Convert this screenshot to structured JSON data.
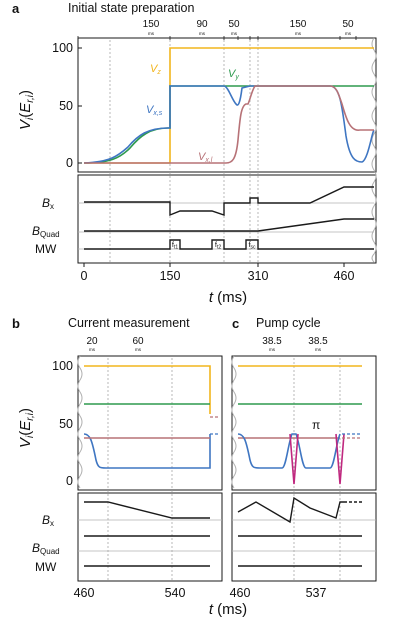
{
  "colors": {
    "Vz": "#f2b51d",
    "Vy": "#2e9a4f",
    "Vxs": "#3f76c2",
    "Vxl": "#b77277",
    "pulse": "#c0287f",
    "axis": "#1a1a1a",
    "guide": "#9a9a9a",
    "trace": "#1a1a1a"
  },
  "panels": {
    "a": {
      "letter": "a",
      "title": "Initial state preparation"
    },
    "b": {
      "letter": "b",
      "title": "Current measurement"
    },
    "c": {
      "letter": "c",
      "title": "Pump cycle"
    }
  },
  "labels": {
    "y_axis_main": "V",
    "y_axis_sub_i": "i",
    "y_axis_paren_open": "(",
    "y_axis_E": "E",
    "y_axis_sub_ri": "r,i",
    "y_axis_paren_close": ")",
    "x_axis_main": "t",
    "x_axis_unit": "(ms)",
    "Bx_main": "B",
    "Bx_sub": "x",
    "BQuad_main": "B",
    "BQuad_sub": "Quad",
    "MW": "MW",
    "Vz_main": "V",
    "Vz_sub": "z",
    "Vy_main": "V",
    "Vy_sub": "y",
    "Vxs_main": "V",
    "Vxs_sub": "x,s",
    "Vxl_main": "V",
    "Vxl_sub": "x,l",
    "pi": "π",
    "f1": "f",
    "f1_sub": "t1",
    "f2": "f",
    "f2_sub": "t2",
    "f3": "f",
    "f3_sub": "sc",
    "ms": "ms"
  },
  "chart_data": [
    {
      "id": "a",
      "type": "line",
      "title": "Initial state preparation",
      "xlabel": "t (ms)",
      "ylabel": "V_i (E_r,i)",
      "xlim": [
        0,
        480
      ],
      "ylim": [
        -5,
        110
      ],
      "x_ticks": [
        0,
        150,
        310,
        460
      ],
      "x_tick_labels": [
        "0",
        "150",
        "310",
        "460"
      ],
      "y_ticks": [
        0,
        50,
        100
      ],
      "y_tick_labels": [
        "0",
        "50",
        "100"
      ],
      "interval_labels": [
        {
          "value": "150",
          "unit": "ms",
          "x": 75
        },
        {
          "value": "90",
          "unit": "ms",
          "x": 195
        },
        {
          "value": "50",
          "unit": "ms",
          "x": 265
        },
        {
          "value": "150",
          "unit": "ms",
          "x": 385
        },
        {
          "value": "50",
          "unit": "ms",
          "x": 455
        }
      ],
      "guides_x": [
        150,
        240,
        290,
        310
      ],
      "series": [
        {
          "name": "V_z",
          "color_key": "Vz",
          "x": [
            0,
            150,
            150,
            480
          ],
          "y": [
            0,
            0,
            100,
            100
          ]
        },
        {
          "name": "V_y",
          "color_key": "Vy",
          "x": [
            0,
            30,
            60,
            90,
            120,
            150,
            150,
            480
          ],
          "y": [
            0,
            2,
            15,
            28,
            30,
            30,
            70,
            70
          ]
        },
        {
          "name": "V_x,s",
          "color_key": "Vxs",
          "x": [
            0,
            30,
            60,
            90,
            120,
            150,
            150,
            240,
            245,
            250,
            255,
            260,
            290,
            300,
            400,
            420,
            430,
            440,
            450,
            460,
            470,
            480
          ],
          "y": [
            0,
            2,
            16,
            30,
            31,
            31,
            70,
            70,
            50,
            35,
            35,
            70,
            70,
            70,
            70,
            60,
            30,
            5,
            0,
            0,
            30,
            38
          ]
        },
        {
          "name": "V_x,l",
          "color_key": "Vxl",
          "x": [
            0,
            240,
            255,
            262,
            268,
            275,
            400,
            420,
            430,
            440,
            460,
            480
          ],
          "y": [
            0,
            0,
            5,
            30,
            60,
            70,
            70,
            65,
            45,
            38,
            38,
            38
          ]
        }
      ],
      "controls": [
        {
          "name": "B_x",
          "x": [
            0,
            150,
            150,
            160,
            200,
            220,
            240,
            240,
            250,
            250,
            270,
            270,
            300,
            420,
            460
          ],
          "y": [
            0.7,
            0.7,
            0.28,
            0.45,
            0.45,
            0.45,
            0.28,
            0.7,
            0.7,
            0.85,
            0.85,
            0.7,
            0.45,
            0.85,
            0.85
          ]
        },
        {
          "name": "B_Quad",
          "x": [
            0,
            240,
            240,
            290,
            460
          ],
          "y": [
            0.2,
            0.2,
            0.2,
            0.2,
            0.55
          ]
        },
        {
          "name": "MW",
          "pulses": [
            {
              "label": "f_t1",
              "x0": 150,
              "x1": 165
            },
            {
              "label": "f_t2",
              "x0": 225,
              "x1": 240
            },
            {
              "label": "f_sc",
              "x0": 270,
              "x1": 285
            }
          ]
        }
      ]
    },
    {
      "id": "b",
      "type": "line",
      "title": "Current measurement",
      "xlabel": "t (ms)",
      "xlim": [
        460,
        560
      ],
      "ylim": [
        -5,
        110
      ],
      "x_ticks": [
        460,
        540
      ],
      "x_tick_labels": [
        "460",
        "540"
      ],
      "y_ticks": [
        0,
        50,
        100
      ],
      "y_tick_labels": [
        "0",
        "50",
        "100"
      ],
      "interval_labels": [
        {
          "value": "20",
          "unit": "ms"
        },
        {
          "value": "60",
          "unit": "ms"
        }
      ],
      "series": [
        {
          "name": "V_z",
          "color_key": "Vz",
          "x": [
            460,
            560
          ],
          "y": [
            100,
            100
          ]
        },
        {
          "name": "V_y",
          "color_key": "Vy",
          "x": [
            460,
            560
          ],
          "y": [
            70,
            70
          ]
        },
        {
          "name": "V_x,s",
          "color_key": "Vxs",
          "x": [
            460,
            470,
            480,
            490,
            540,
            560
          ],
          "y": [
            38,
            30,
            10,
            10,
            10,
            10
          ]
        },
        {
          "name": "V_x,l",
          "color_key": "Vxl",
          "x": [
            460,
            560
          ],
          "y": [
            38,
            38
          ]
        }
      ]
    },
    {
      "id": "c",
      "type": "line",
      "title": "Pump cycle",
      "xlabel": "t (ms)",
      "xlim": [
        460,
        560
      ],
      "ylim": [
        -5,
        110
      ],
      "x_ticks": [
        460,
        537
      ],
      "x_tick_labels": [
        "460",
        "537"
      ],
      "interval_labels": [
        {
          "value": "38.5",
          "unit": "ms"
        },
        {
          "value": "38.5",
          "unit": "ms"
        }
      ],
      "annotation": "π",
      "series": [
        {
          "name": "V_z",
          "color_key": "Vz",
          "x": [
            460,
            560
          ],
          "y": [
            100,
            100
          ]
        },
        {
          "name": "V_y",
          "color_key": "Vy",
          "x": [
            460,
            560
          ],
          "y": [
            70,
            70
          ]
        }
      ]
    }
  ]
}
